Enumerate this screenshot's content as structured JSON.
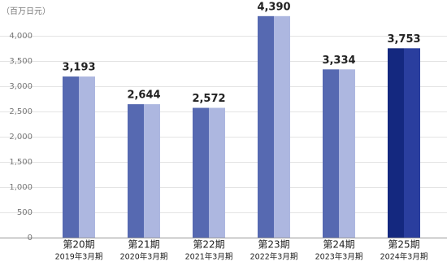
{
  "chart_data": {
    "type": "bar",
    "unit_label": "（百万日元）",
    "categories": [
      "第20期",
      "第21期",
      "第22期",
      "第23期",
      "第24期",
      "第25期"
    ],
    "sublabels": [
      "2019年3月期",
      "2020年3月期",
      "2021年3月期",
      "2022年3月期",
      "2023年3月期",
      "2024年3月期"
    ],
    "values": [
      3193,
      2644,
      2572,
      4390,
      3334,
      3753
    ],
    "value_labels": [
      "3,193",
      "2,644",
      "2,572",
      "4,390",
      "3,334",
      "3,753"
    ],
    "colors": [
      "#5669b1",
      "#5669b1",
      "#5669b1",
      "#5669b1",
      "#5669b1",
      "#14287f"
    ],
    "light_colors": [
      "#adb7e0",
      "#adb7e0",
      "#adb7e0",
      "#adb7e0",
      "#adb7e0",
      "#2a3e9e"
    ],
    "ylim": [
      0,
      4400
    ],
    "yticks": [
      0,
      500,
      {
        "value": 1000,
        "label": "1,000"
      },
      {
        "value": 1500,
        "label": "1,500"
      },
      {
        "value": 2000,
        "label": "2,000"
      },
      {
        "value": 2500,
        "label": "2,500"
      },
      {
        "value": 3000,
        "label": "3,000"
      },
      {
        "value": 3500,
        "label": "3,500"
      },
      {
        "value": 4000,
        "label": "4,000"
      }
    ],
    "grid": true
  }
}
